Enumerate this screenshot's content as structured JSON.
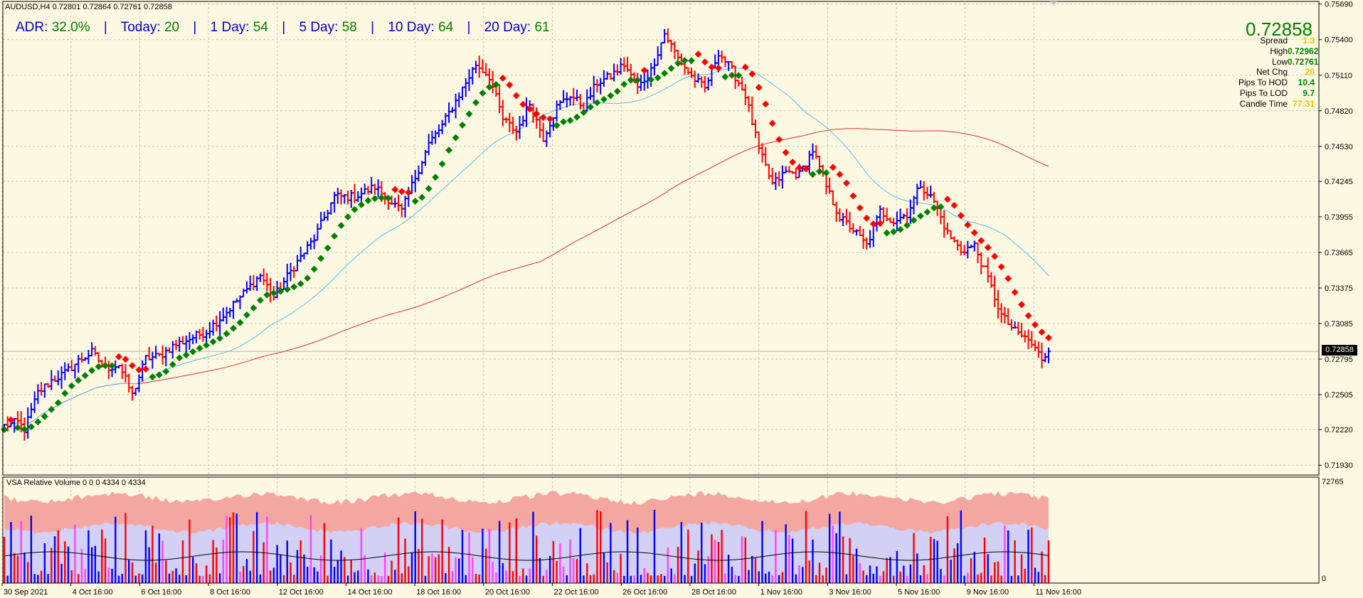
{
  "symbol_label": "AUDUSD,H4  0.72801 0.72864 0.72761 0.72858",
  "adr": {
    "adr_label": "ADR:",
    "adr_value": "32.0%",
    "today_label": "Today:",
    "today_value": "20",
    "d1_label": "1 Day:",
    "d1_value": "54",
    "d5_label": "5 Day:",
    "d5_value": "58",
    "d10_label": "10 Day:",
    "d10_value": "64",
    "d20_label": "20 Day:",
    "d20_value": "61",
    "separator": "|"
  },
  "big_price": "0.72858",
  "stats": [
    {
      "key": "Spread",
      "value": "1.3",
      "color": "#e6c800"
    },
    {
      "key": "High",
      "value": "0.72962",
      "color": "#008000"
    },
    {
      "key": "Low",
      "value": "0.72761",
      "color": "#008000"
    },
    {
      "key": "Net Chg",
      "value": "20",
      "color": "#e6c800"
    },
    {
      "key": "Pips To HOD",
      "value": "10.4",
      "color": "#008000"
    },
    {
      "key": "Pips To LOD",
      "value": "9.7",
      "color": "#008000"
    },
    {
      "key": "Candle Time",
      "value": "77:31",
      "color": "#e6c800"
    }
  ],
  "current_price_tag": "0.72858",
  "vsa_label": "VSA Relative Volume 0 0 0 4334 0 4334",
  "vsa_axis": {
    "top": "72765",
    "bottom": "0"
  },
  "colors": {
    "background": "#fdf8e1",
    "up_bar": "#0000ff",
    "down_bar": "#ff0000",
    "trend_up": "#008000",
    "trend_down": "#ff0000",
    "ma_fast": "#5bc0eb",
    "ma_slow": "#e03030",
    "grid": "#c8c8b4"
  },
  "chart_data": {
    "type": "bar",
    "title": "AUDUSD,H4",
    "x_ticks": [
      "30 Sep 2021",
      "4 Oct 16:00",
      "6 Oct 16:00",
      "8 Oct 16:00",
      "12 Oct 16:00",
      "14 Oct 16:00",
      "18 Oct 16:00",
      "20 Oct 16:00",
      "22 Oct 16:00",
      "26 Oct 16:00",
      "28 Oct 16:00",
      "1 Nov 16:00",
      "3 Nov 16:00",
      "5 Nov 16:00",
      "9 Nov 16:00",
      "11 Nov 16:00"
    ],
    "y_ticks": [
      "0.75690",
      "0.75400",
      "0.75110",
      "0.74820",
      "0.74530",
      "0.74245",
      "0.73955",
      "0.73665",
      "0.73375",
      "0.73085",
      "0.72795",
      "0.72505",
      "0.72220",
      "0.71930"
    ],
    "ylim": [
      0.7185,
      0.757
    ],
    "current_price": 0.72858,
    "close_anchors": [
      [
        0,
        0.7225
      ],
      [
        4,
        0.7228
      ],
      [
        6,
        0.7222
      ],
      [
        10,
        0.7252
      ],
      [
        14,
        0.7262
      ],
      [
        18,
        0.7268
      ],
      [
        22,
        0.7278
      ],
      [
        26,
        0.7285
      ],
      [
        30,
        0.7272
      ],
      [
        34,
        0.7275
      ],
      [
        38,
        0.725
      ],
      [
        42,
        0.728
      ],
      [
        46,
        0.7282
      ],
      [
        50,
        0.729
      ],
      [
        54,
        0.7295
      ],
      [
        60,
        0.7302
      ],
      [
        66,
        0.7318
      ],
      [
        70,
        0.733
      ],
      [
        76,
        0.7348
      ],
      [
        80,
        0.733
      ],
      [
        86,
        0.7355
      ],
      [
        92,
        0.7378
      ],
      [
        98,
        0.7412
      ],
      [
        104,
        0.7412
      ],
      [
        110,
        0.742
      ],
      [
        114,
        0.741
      ],
      [
        118,
        0.74
      ],
      [
        122,
        0.7428
      ],
      [
        126,
        0.7455
      ],
      [
        130,
        0.747
      ],
      [
        136,
        0.75
      ],
      [
        140,
        0.752
      ],
      [
        144,
        0.751
      ],
      [
        148,
        0.7475
      ],
      [
        152,
        0.7465
      ],
      [
        156,
        0.7488
      ],
      [
        160,
        0.746
      ],
      [
        164,
        0.7485
      ],
      [
        168,
        0.7495
      ],
      [
        172,
        0.7485
      ],
      [
        176,
        0.7505
      ],
      [
        180,
        0.751
      ],
      [
        184,
        0.752
      ],
      [
        188,
        0.75
      ],
      [
        192,
        0.7515
      ],
      [
        196,
        0.7545
      ],
      [
        200,
        0.7525
      ],
      [
        204,
        0.751
      ],
      [
        208,
        0.75
      ],
      [
        212,
        0.753
      ],
      [
        216,
        0.7515
      ],
      [
        220,
        0.7495
      ],
      [
        224,
        0.745
      ],
      [
        228,
        0.7422
      ],
      [
        232,
        0.7432
      ],
      [
        236,
        0.743
      ],
      [
        240,
        0.745
      ],
      [
        244,
        0.742
      ],
      [
        248,
        0.7395
      ],
      [
        252,
        0.7385
      ],
      [
        256,
        0.7372
      ],
      [
        260,
        0.74
      ],
      [
        264,
        0.7392
      ],
      [
        268,
        0.7398
      ],
      [
        272,
        0.7422
      ],
      [
        276,
        0.7408
      ],
      [
        280,
        0.7382
      ],
      [
        284,
        0.7368
      ],
      [
        288,
        0.7372
      ],
      [
        292,
        0.7345
      ],
      [
        296,
        0.7315
      ],
      [
        300,
        0.7302
      ],
      [
        304,
        0.7295
      ],
      [
        308,
        0.728
      ],
      [
        310,
        0.72858
      ]
    ],
    "volume_axis": [
      0,
      72765
    ]
  }
}
